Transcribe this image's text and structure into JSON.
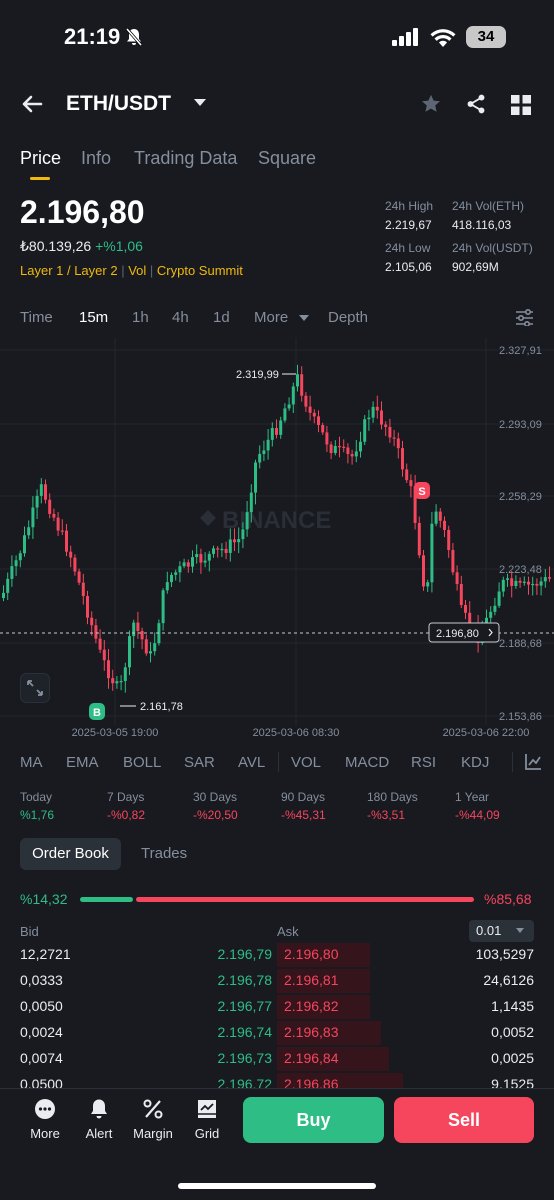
{
  "status_bar": {
    "time": "21:19",
    "battery": "34"
  },
  "header": {
    "pair": "ETH/USDT"
  },
  "tabs": [
    "Price",
    "Info",
    "Trading Data",
    "Square"
  ],
  "price": {
    "last": "2.196,80",
    "fiat": "₺80.139,26",
    "change": "+%1,06",
    "tags": [
      "Layer 1 / Layer 2",
      "Vol",
      "Crypto Summit"
    ]
  },
  "stats": {
    "high_label": "24h High",
    "high": "2.219,67",
    "vol_eth_label": "24h Vol(ETH)",
    "vol_eth": "418.116,03",
    "low_label": "24h Low",
    "low": "2.105,06",
    "vol_usdt_label": "24h Vol(USDT)",
    "vol_usdt": "902,69M"
  },
  "intervals": [
    "Time",
    "15m",
    "1h",
    "4h",
    "1d",
    "More",
    "Depth"
  ],
  "chart_data": {
    "type": "candlestick",
    "y_ticks": [
      "2.327,91",
      "2.293,09",
      "2.258,29",
      "2.223,48",
      "2.188,68",
      "2.153,86"
    ],
    "x_ticks": [
      "2025-03-05 19:00",
      "2025-03-06 08:30",
      "2025-03-06 22:00"
    ],
    "high_label": "2.319,99",
    "low_label": "2.161,78",
    "current_price": "2.196,80",
    "watermark": "BINANCE",
    "buy_marker": "B",
    "sell_marker": "S",
    "ylim": [
      2153.86,
      2327.91
    ]
  },
  "indicators": [
    "MA",
    "EMA",
    "BOLL",
    "SAR",
    "AVL",
    "VOL",
    "MACD",
    "RSI",
    "KDJ"
  ],
  "performance": [
    {
      "label": "Today",
      "value": "%1,76",
      "dir": "up"
    },
    {
      "label": "7 Days",
      "value": "-%0,82",
      "dir": "down"
    },
    {
      "label": "30 Days",
      "value": "-%20,50",
      "dir": "down"
    },
    {
      "label": "90 Days",
      "value": "-%45,31",
      "dir": "down"
    },
    {
      "label": "180 Days",
      "value": "-%3,51",
      "dir": "down"
    },
    {
      "label": "1 Year",
      "value": "-%44,09",
      "dir": "down"
    }
  ],
  "orderbook": {
    "tab_order_book": "Order Book",
    "tab_trades": "Trades",
    "bid_ratio": "%14,32",
    "ask_ratio": "%85,68",
    "bid_ratio_value": 14.32,
    "bid_header": "Bid",
    "ask_header": "Ask",
    "precision": "0.01",
    "rows": [
      {
        "bid_qty": "12,2721",
        "bid_price": "2.196,79",
        "ask_price": "2.196,80",
        "ask_qty": "103,5297"
      },
      {
        "bid_qty": "0,0333",
        "bid_price": "2.196,78",
        "ask_price": "2.196,81",
        "ask_qty": "24,6126"
      },
      {
        "bid_qty": "0,0050",
        "bid_price": "2.196,77",
        "ask_price": "2.196,82",
        "ask_qty": "1,1435"
      },
      {
        "bid_qty": "0,0024",
        "bid_price": "2.196,74",
        "ask_price": "2.196,83",
        "ask_qty": "0,0052"
      },
      {
        "bid_qty": "0,0074",
        "bid_price": "2.196,73",
        "ask_price": "2.196,84",
        "ask_qty": "0,0025"
      },
      {
        "bid_qty": "0,0500",
        "bid_price": "2.196,72",
        "ask_price": "2.196,86",
        "ask_qty": "9,1525"
      }
    ]
  },
  "bottom_nav": {
    "items": [
      "More",
      "Alert",
      "Margin",
      "Grid"
    ],
    "buy": "Buy",
    "sell": "Sell"
  },
  "colors": {
    "up": "#2ebd85",
    "down": "#f6465d",
    "accent": "#f0b90b",
    "bg": "#181a20"
  }
}
